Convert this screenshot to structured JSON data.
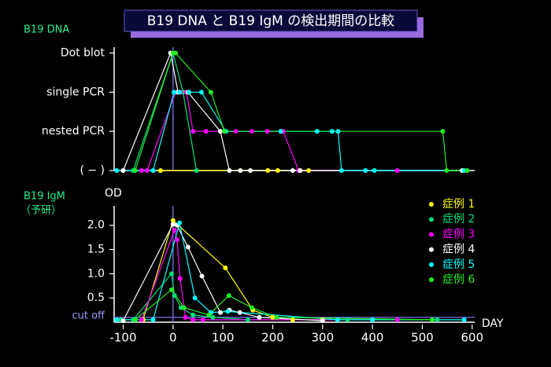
{
  "title": "B19 DNA と B19 IgM の検出期間の比較",
  "chart_data": [
    {
      "type": "line",
      "ylabel": "B19 DNA",
      "xlim": [
        -115,
        605
      ],
      "ylim": [
        0,
        3.15
      ],
      "vline_x": 0,
      "yticks": [
        {
          "value": 0,
          "label": "( − )"
        },
        {
          "value": 1,
          "label": "nested PCR"
        },
        {
          "value": 2,
          "label": "single PCR"
        },
        {
          "value": 3,
          "label": "Dot blot"
        }
      ],
      "series": [
        {
          "color": "#ffff00",
          "x": [
            -25,
            190,
            210,
            272
          ],
          "values": [
            0,
            0,
            0,
            0
          ]
        },
        {
          "color": "#00e07a",
          "x": [
            -80,
            0,
            20,
            47
          ],
          "values": [
            0,
            3,
            2,
            0
          ]
        },
        {
          "color": "#ff00ff",
          "x": [
            -63,
            -52,
            5,
            15,
            27,
            40,
            66,
            95,
            126,
            158,
            189,
            221,
            252,
            450
          ],
          "values": [
            0,
            0,
            2,
            2,
            2,
            1,
            1,
            1,
            1,
            1,
            1,
            1,
            0,
            0
          ]
        },
        {
          "color": "#ffffff",
          "x": [
            -100,
            -5,
            10,
            30,
            95,
            113,
            135,
            155,
            240,
            255,
            580
          ],
          "values": [
            0,
            3,
            2,
            2,
            1,
            0,
            0,
            0,
            0,
            0,
            0
          ]
        },
        {
          "color": "#00ffff",
          "x": [
            -113,
            -40,
            2,
            13,
            32,
            57,
            106,
            216,
            289,
            319,
            331,
            338,
            386,
            404,
            584
          ],
          "values": [
            0,
            0,
            2,
            2,
            2,
            2,
            1,
            1,
            1,
            1,
            1,
            0,
            0,
            0,
            0
          ]
        },
        {
          "color": "#22ee22",
          "x": [
            -76,
            0,
            5,
            76,
            103,
            541,
            549,
            590
          ],
          "values": [
            0,
            3,
            3,
            2,
            1,
            1,
            0,
            0
          ]
        }
      ]
    },
    {
      "type": "line",
      "ylabel": "B19 IgM",
      "ylabel2": "（予研）",
      "yunit": "OD",
      "xlabel": "DAY",
      "legend": "right",
      "xlim": [
        -115,
        605
      ],
      "ylim": [
        0,
        2.4
      ],
      "vline_x": 0,
      "xticks": [
        -100,
        0,
        100,
        200,
        300,
        400,
        500,
        600
      ],
      "yticks": [
        0.5,
        {
          "value": 1,
          "label": "1.0"
        },
        1.5,
        {
          "value": 2,
          "label": "2.0"
        }
      ],
      "cutoff": {
        "value": 0.1,
        "label": "cut off"
      },
      "series": [
        {
          "name": "症例 1",
          "color": "#ffff00",
          "x": [
            -60,
            0,
            105,
            160,
            200,
            240,
            300
          ],
          "values": [
            0.05,
            2.1,
            1.12,
            0.25,
            0.1,
            0.05,
            0.05
          ]
        },
        {
          "name": "症例 2",
          "color": "#00e07a",
          "x": [
            -105,
            -80,
            -3,
            3,
            16,
            40,
            80,
            150,
            350,
            530
          ],
          "values": [
            0.05,
            0.05,
            1.0,
            0.55,
            0.3,
            0.15,
            0.1,
            0.05,
            0.05,
            0.05
          ]
        },
        {
          "name": "症例 3",
          "color": "#ff00ff",
          "x": [
            -63,
            3,
            8,
            14,
            25,
            40,
            60,
            450
          ],
          "values": [
            0.05,
            1.9,
            1.7,
            0.9,
            0.1,
            0.05,
            0.05,
            0.05
          ]
        },
        {
          "name": "症例 4",
          "color": "#ffffff",
          "x": [
            -100,
            0,
            8,
            30,
            58,
            95,
            113,
            134,
            173,
            300
          ],
          "values": [
            0.03,
            2.02,
            2.0,
            1.55,
            0.95,
            0.2,
            0.25,
            0.2,
            0.1,
            0.03
          ]
        },
        {
          "name": "症例 5",
          "color": "#00ffff",
          "x": [
            -113,
            -40,
            13,
            44,
            76,
            110,
            330,
            400,
            584
          ],
          "values": [
            0.05,
            0.05,
            2.05,
            0.5,
            0.2,
            0.22,
            0.05,
            0.05,
            0.05
          ]
        },
        {
          "name": "症例 6",
          "color": "#22ee22",
          "x": [
            -76,
            -3,
            22,
            72,
            112,
            158,
            208,
            520
          ],
          "values": [
            0.05,
            0.67,
            0.3,
            0.15,
            0.55,
            0.3,
            0.1,
            0.05
          ]
        }
      ]
    }
  ]
}
